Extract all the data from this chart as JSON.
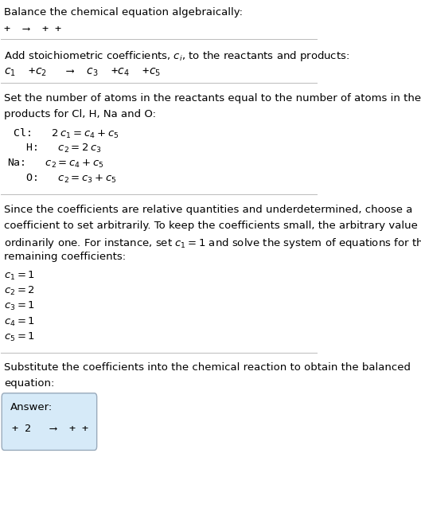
{
  "title": "Balance the chemical equation algebraically:",
  "line1": "+  ⟶  + +",
  "section2_title": "Add stoichiometric coefficients, $c_i$, to the reactants and products:",
  "section2_eq": "$c_1$  +$c_2$   ⟶  $c_3$  +$c_4$  +$c_5$",
  "section3_title": "Set the number of atoms in the reactants equal to the number of atoms in the\nproducts for Cl, H, Na and O:",
  "section3_lines": [
    " Cl:   $2\\,c_1 = c_4 + c_5$",
    "   H:   $c_2 = 2\\,c_3$",
    "Na:   $c_2 = c_4 + c_5$",
    "   O:   $c_2 = c_3 + c_5$"
  ],
  "section4_title": "Since the coefficients are relative quantities and underdetermined, choose a\ncoefficient to set arbitrarily. To keep the coefficients small, the arbitrary value is\nordinarily one. For instance, set $c_1 = 1$ and solve the system of equations for the\nremaining coefficients:",
  "section4_lines": [
    "$c_1 = 1$",
    "$c_2 = 2$",
    "$c_3 = 1$",
    "$c_4 = 1$",
    "$c_5 = 1$"
  ],
  "section5_title": "Substitute the coefficients into the chemical reaction to obtain the balanced\nequation:",
  "answer_label": "Answer:",
  "answer_eq": "+ 2   ⟶  + +",
  "bg_color": "#ffffff",
  "text_color": "#000000",
  "box_color": "#d6eaf8",
  "sep_color": "#bbbbbb",
  "font_size": 9.5,
  "mono_font": "DejaVu Sans Mono"
}
